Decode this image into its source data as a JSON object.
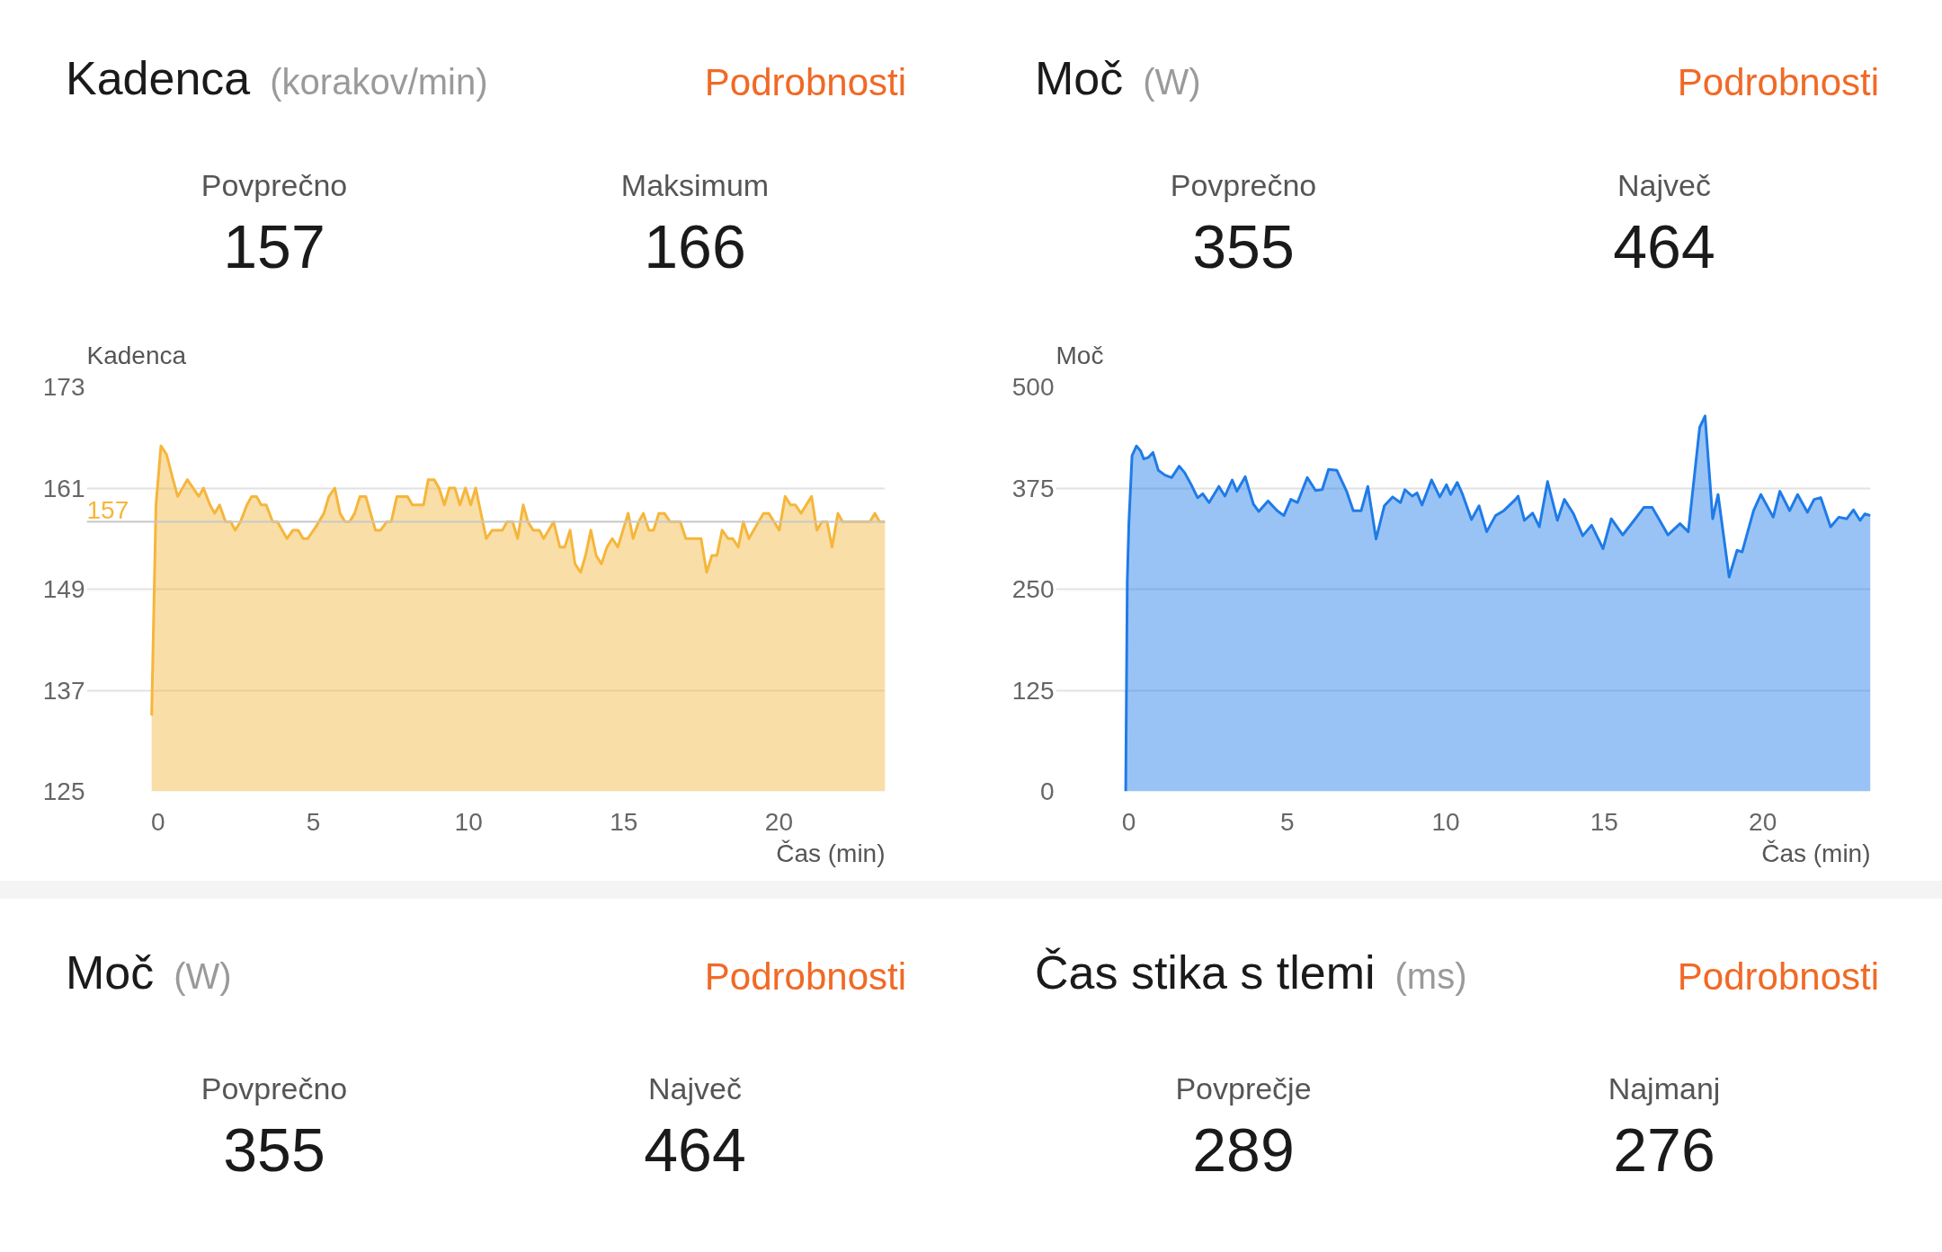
{
  "chart_data": [
    {
      "type": "area",
      "title": "Kadenca",
      "subtitle": "(korakov/min)",
      "ylabel": "Kadenca",
      "xlabel": "Čas (min)",
      "annotations": [
        "Podrobnosti",
        "Povprečno",
        "157",
        "Maksimum",
        "166"
      ],
      "x": [
        -0.21,
        -0.07,
        0.09,
        0.27,
        0.48,
        0.63,
        0.94,
        1.31,
        1.46,
        1.67,
        1.82,
        1.98,
        2.17,
        2.34,
        2.48,
        2.65,
        2.86,
        3.01,
        3.17,
        3.32,
        3.48,
        3.69,
        3.84,
        4.15,
        4.34,
        4.51,
        4.67,
        4.82,
        5.08,
        5.34,
        5.5,
        5.69,
        5.86,
        6.02,
        6.17,
        6.33,
        6.5,
        6.69,
        7.0,
        7.17,
        7.36,
        7.51,
        7.69,
        8.03,
        8.19,
        8.55,
        8.7,
        8.89,
        9.05,
        9.22,
        9.38,
        9.56,
        9.72,
        9.9,
        10.07,
        10.23,
        10.57,
        10.76,
        11.09,
        11.24,
        11.42,
        11.58,
        11.76,
        11.91,
        12.08,
        12.28,
        12.42,
        12.74,
        12.94,
        13.1,
        13.27,
        13.43,
        13.61,
        13.77,
        13.94,
        14.11,
        14.28,
        14.46,
        14.63,
        14.81,
        15.14,
        15.3,
        15.48,
        15.63,
        15.81,
        15.96,
        16.13,
        16.31,
        16.49,
        16.82,
        17.0,
        17.49,
        17.67,
        17.84,
        18.0,
        18.17,
        18.36,
        18.51,
        18.69,
        18.85,
        19.03,
        19.5,
        19.67,
        20.01,
        20.2,
        20.37,
        20.53,
        20.71,
        21.05,
        21.22,
        21.38,
        21.55,
        21.71,
        21.9,
        22.05,
        22.93,
        23.09,
        23.24,
        23.42
      ],
      "series": [
        {
          "color": "#f5b63b",
          "values": [
            134,
            159,
            166,
            165,
            162,
            160,
            162,
            160,
            161,
            159,
            158,
            159,
            157,
            157,
            156,
            157,
            159,
            160,
            160,
            159,
            159,
            157,
            157,
            155,
            156,
            156,
            155,
            155,
            156.4,
            158,
            160,
            161,
            158,
            157,
            157,
            158,
            160,
            160,
            156,
            156,
            157,
            157,
            160,
            160,
            159,
            159,
            162,
            162,
            161,
            159,
            161,
            161,
            159,
            161,
            159,
            161,
            155,
            156,
            156,
            157,
            157,
            155,
            159,
            157,
            156,
            156,
            155,
            157,
            154,
            154,
            156,
            152,
            151,
            153,
            156,
            153,
            152,
            154,
            155,
            154,
            158,
            155,
            157,
            158,
            156,
            156,
            158,
            158,
            157,
            157,
            155,
            155,
            151,
            153,
            153,
            156,
            155,
            155,
            154,
            157,
            155,
            158,
            158,
            156,
            160,
            159,
            159,
            158,
            160,
            156,
            157,
            157,
            154,
            158,
            157,
            157,
            158,
            157,
            157
          ]
        }
      ],
      "xlim": [
        -2.3,
        23.42
      ],
      "xticks": [
        0,
        5,
        10,
        15,
        20
      ],
      "ylim": [
        125,
        173
      ],
      "yticks": [
        125,
        137,
        149,
        161,
        173
      ],
      "ref_lines": [
        {
          "axis": "y",
          "value": 157,
          "label": "157",
          "color": "#c8c8c8"
        }
      ],
      "grid": "y"
    },
    {
      "type": "area",
      "title": "Moč",
      "subtitle": "(W)",
      "ylabel": "Moč",
      "xlabel": "Čas (min)",
      "annotations": [
        "Podrobnosti",
        "Povprečno",
        "355",
        "Največ",
        "464"
      ],
      "x": [
        -0.1,
        -0.05,
        0.0,
        0.1,
        0.24,
        0.37,
        0.47,
        0.62,
        0.76,
        0.93,
        1.14,
        1.35,
        1.59,
        1.76,
        1.97,
        2.17,
        2.33,
        2.53,
        2.84,
        3.03,
        3.26,
        3.41,
        3.67,
        3.93,
        4.1,
        4.39,
        4.68,
        4.89,
        5.11,
        5.32,
        5.63,
        5.89,
        6.1,
        6.3,
        6.56,
        6.87,
        7.08,
        7.33,
        7.54,
        7.8,
        8.06,
        8.32,
        8.57,
        8.71,
        8.94,
        9.09,
        9.25,
        9.55,
        9.81,
        10.02,
        10.15,
        10.36,
        10.53,
        10.81,
        11.05,
        11.29,
        11.57,
        11.83,
        12.2,
        12.28,
        12.48,
        12.74,
        12.95,
        13.21,
        13.52,
        13.74,
        14.03,
        14.32,
        14.6,
        14.96,
        15.22,
        15.58,
        15.94,
        16.25,
        16.51,
        16.72,
        17.01,
        17.39,
        17.65,
        18.01,
        18.18,
        18.42,
        18.59,
        18.94,
        19.19,
        19.35,
        19.71,
        19.94,
        20.33,
        20.54,
        20.85,
        21.1,
        21.41,
        21.62,
        21.83,
        22.14,
        22.4,
        22.65,
        22.86,
        23.07,
        23.22,
        23.4
      ],
      "series": [
        {
          "color": "#1f7be8",
          "values": [
            0,
            260,
            331,
            415,
            427,
            421,
            411,
            413,
            419,
            397,
            391,
            388,
            402,
            394,
            379,
            363,
            368,
            357,
            377,
            365,
            385,
            371,
            389,
            355,
            346,
            359,
            347,
            341,
            361,
            357,
            388,
            372,
            373,
            398,
            397,
            371,
            347,
            347,
            377,
            312,
            353,
            364,
            357,
            373,
            365,
            369,
            354,
            385,
            364,
            379,
            367,
            382,
            367,
            336,
            353,
            321,
            341,
            347,
            361,
            365,
            335,
            344,
            327,
            383,
            335,
            361,
            343,
            316,
            329,
            300,
            337,
            317,
            335,
            351,
            351,
            337,
            317,
            331,
            321,
            450,
            464,
            337,
            367,
            265,
            298,
            296,
            347,
            367,
            339,
            371,
            347,
            367,
            345,
            361,
            363,
            327,
            339,
            337,
            348,
            335,
            343,
            341
          ]
        }
      ],
      "xlim": [
        -2.3,
        23.4
      ],
      "xticks": [
        0,
        5,
        10,
        15,
        20
      ],
      "ylim": [
        0,
        500
      ],
      "yticks": [
        0,
        125,
        250,
        375,
        500
      ],
      "grid": "y"
    },
    {
      "type": "other",
      "title": "Moč",
      "subtitle": "(W)",
      "annotations": [
        "Podrobnosti",
        "Povprečno",
        "355",
        "Največ",
        "464"
      ]
    },
    {
      "type": "other",
      "title": "Čas stika s tlemi",
      "subtitle": "(ms)",
      "annotations": [
        "Podrobnosti",
        "Povprečje",
        "289",
        "Najmanj",
        "276"
      ]
    }
  ]
}
